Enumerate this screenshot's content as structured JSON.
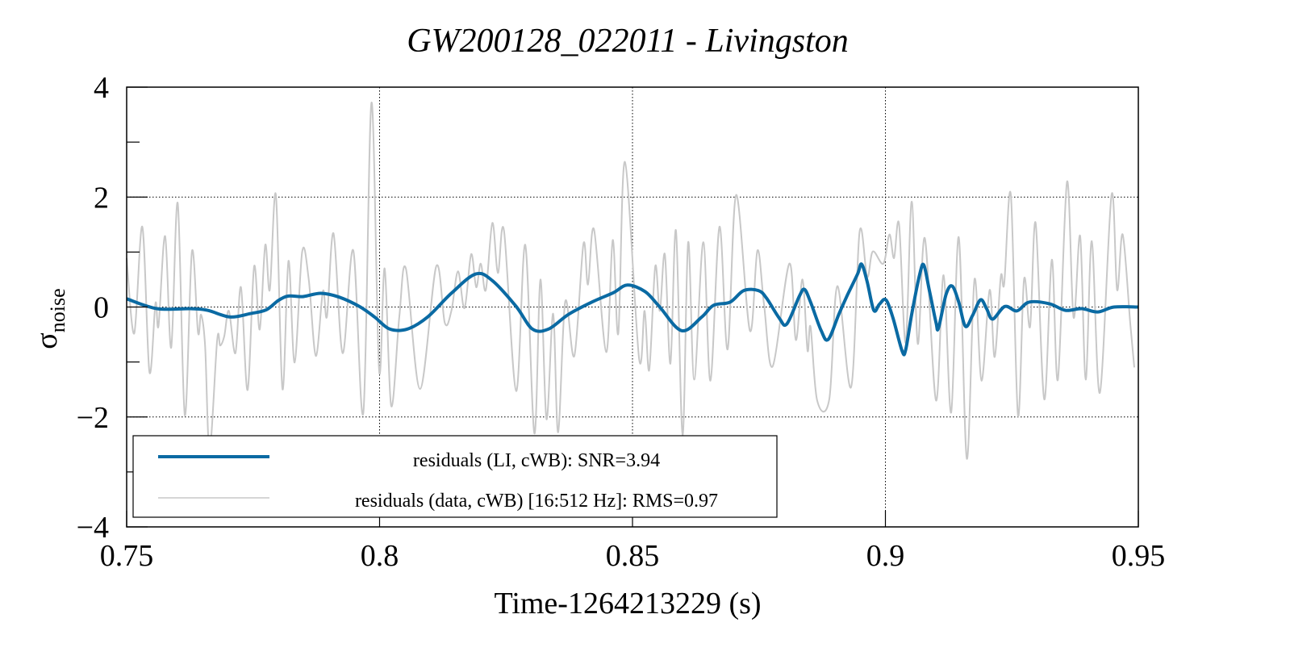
{
  "chart_data": {
    "type": "line",
    "title": "GW200128_022011 - Livingston",
    "xlabel": "Time-1264213229 (s)",
    "ylabel": "σ",
    "ylabel_sub": "noise",
    "xlim": [
      0.75,
      0.95
    ],
    "ylim": [
      -4,
      4
    ],
    "xticks": [
      0.75,
      0.8,
      0.85,
      0.9,
      0.95
    ],
    "xtick_labels": [
      "0.75",
      "0.8",
      "0.85",
      "0.9",
      "0.95"
    ],
    "yticks": [
      4,
      2,
      0,
      -2,
      -4
    ],
    "ytick_labels": [
      "4",
      "2",
      "0",
      "−2",
      "−4"
    ],
    "yminor": [
      3,
      1,
      -1,
      -3
    ],
    "grid": true,
    "legend_position": "bottom-left",
    "colors": {
      "model": "#0a6aa3",
      "data": "#c8c8c8"
    },
    "series": [
      {
        "name": "residuals (data, cWB) [16:512 Hz]: RMS=0.97",
        "legend": "residuals (data, cWB) [16:512 Hz]: RMS=0.97",
        "x": [
          0.75,
          0.7515,
          0.7531,
          0.7545,
          0.7557,
          0.7563,
          0.7576,
          0.7588,
          0.7601,
          0.7615,
          0.7629,
          0.7641,
          0.7647,
          0.7655,
          0.7664,
          0.7679,
          0.7685,
          0.7693,
          0.7702,
          0.7715,
          0.7726,
          0.7739,
          0.7752,
          0.7763,
          0.7774,
          0.7783,
          0.7795,
          0.7808,
          0.782,
          0.7832,
          0.7847,
          0.786,
          0.7874,
          0.7888,
          0.7896,
          0.7909,
          0.7927,
          0.7948,
          0.7968,
          0.7984,
          0.7999,
          0.801,
          0.8023,
          0.8039,
          0.8052,
          0.808,
          0.8112,
          0.8129,
          0.8142,
          0.8155,
          0.8168,
          0.8181,
          0.8191,
          0.82,
          0.821,
          0.8223,
          0.8234,
          0.8246,
          0.827,
          0.8288,
          0.8306,
          0.8318,
          0.833,
          0.8343,
          0.8353,
          0.8367,
          0.8385,
          0.8403,
          0.8412,
          0.8424,
          0.8448,
          0.8461,
          0.8472,
          0.8485,
          0.8513,
          0.8524,
          0.8533,
          0.8545,
          0.8554,
          0.8564,
          0.8575,
          0.8586,
          0.8599,
          0.861,
          0.8622,
          0.864,
          0.8654,
          0.8672,
          0.8688,
          0.8705,
          0.8732,
          0.8747,
          0.876,
          0.8777,
          0.881,
          0.8823,
          0.8836,
          0.8846,
          0.8852,
          0.8865,
          0.8889,
          0.8905,
          0.8932,
          0.8949,
          0.8964,
          0.8975,
          0.8996,
          0.9008,
          0.9017,
          0.9027,
          0.904,
          0.9052,
          0.9064,
          0.9078,
          0.91,
          0.9115,
          0.913,
          0.9145,
          0.9161,
          0.9176,
          0.919,
          0.9206,
          0.9216,
          0.9228,
          0.9235,
          0.9248,
          0.9262,
          0.9274,
          0.9286,
          0.9297,
          0.9314,
          0.9329,
          0.9341,
          0.9359,
          0.9372,
          0.9385,
          0.9396,
          0.9408,
          0.9424,
          0.9447,
          0.9458,
          0.9469,
          0.9484,
          0.9492
        ],
        "y": [
          0.89,
          -0.48,
          1.46,
          -1.18,
          0.07,
          -0.34,
          1.29,
          -0.74,
          1.89,
          -1.97,
          1.01,
          -0.46,
          -0.14,
          -0.7,
          -2.6,
          -0.6,
          -0.7,
          -0.53,
          -0.07,
          -0.84,
          0.36,
          -1.51,
          0.74,
          -0.41,
          1.13,
          0.31,
          2.04,
          -1.49,
          0.84,
          -1.01,
          1.01,
          0.5,
          -0.89,
          0.29,
          -0.17,
          1.34,
          -0.84,
          1.03,
          -1.92,
          3.72,
          -1.15,
          0.7,
          -1.8,
          -0.17,
          0.7,
          -1.49,
          0.74,
          -0.29,
          -0.07,
          0.65,
          -0.02,
          0.96,
          0.36,
          0.79,
          0.31,
          1.53,
          0.62,
          1.39,
          -1.53,
          1.13,
          -2.3,
          0.5,
          -2.04,
          -0.12,
          -2.28,
          0.1,
          -0.89,
          1.15,
          0.41,
          1.41,
          -0.82,
          1.22,
          -0.48,
          2.64,
          -0.94,
          -0.07,
          -1.15,
          0.74,
          -0.07,
          0.96,
          -1.03,
          1.39,
          -2.33,
          1.18,
          -1.32,
          1.18,
          -1.34,
          1.46,
          -0.77,
          2.04,
          -0.43,
          1.03,
          0.05,
          -1.08,
          0.79,
          -0.6,
          0.5,
          -0.79,
          -0.36,
          -1.7,
          -1.68,
          0.38,
          -1.46,
          1.37,
          0.55,
          1.01,
          0.79,
          1.32,
          0.89,
          1.51,
          -0.65,
          1.92,
          -0.67,
          1.25,
          -1.7,
          0.58,
          -1.92,
          1.27,
          -2.76,
          0.5,
          -1.34,
          0.31,
          -0.91,
          0.55,
          0.43,
          2.04,
          -1.97,
          0.5,
          -0.36,
          1.53,
          -1.68,
          0.86,
          -1.32,
          2.28,
          -0.19,
          1.29,
          -1.32,
          1.2,
          -1.56,
          2.04,
          0.31,
          1.32,
          -0.3,
          -1.1
        ]
      },
      {
        "name": "residuals (LI, cWB): SNR=3.94",
        "legend": "residuals (LI, cWB): SNR=3.94",
        "x": [
          0.75,
          0.756,
          0.7626,
          0.766,
          0.7704,
          0.7744,
          0.7776,
          0.78,
          0.782,
          0.7848,
          0.7884,
          0.792,
          0.796,
          0.799,
          0.802,
          0.8055,
          0.8095,
          0.8143,
          0.819,
          0.8223,
          0.827,
          0.8302,
          0.8334,
          0.8374,
          0.8422,
          0.8462,
          0.849,
          0.8525,
          0.8553,
          0.8597,
          0.8637,
          0.866,
          0.8693,
          0.872,
          0.8749,
          0.8765,
          0.879,
          0.8805,
          0.883,
          0.884,
          0.8852,
          0.8873,
          0.8887,
          0.8908,
          0.8924,
          0.8945,
          0.8953,
          0.8964,
          0.8977,
          0.8988,
          0.9001,
          0.9015,
          0.9033,
          0.904,
          0.9052,
          0.9068,
          0.9076,
          0.9087,
          0.91,
          0.9105,
          0.912,
          0.9132,
          0.9145,
          0.9158,
          0.9172,
          0.9188,
          0.92,
          0.9212,
          0.9236,
          0.926,
          0.9284,
          0.9324,
          0.9356,
          0.9388,
          0.942,
          0.9452,
          0.95
        ],
        "y": [
          0.15,
          -0.03,
          -0.03,
          -0.06,
          -0.18,
          -0.12,
          -0.05,
          0.12,
          0.2,
          0.19,
          0.25,
          0.18,
          0.01,
          -0.18,
          -0.4,
          -0.4,
          -0.18,
          0.26,
          0.6,
          0.48,
          0.01,
          -0.4,
          -0.4,
          -0.13,
          0.1,
          0.26,
          0.4,
          0.28,
          0.01,
          -0.43,
          -0.18,
          0.03,
          0.09,
          0.3,
          0.3,
          0.16,
          -0.2,
          -0.31,
          0.2,
          0.32,
          0.09,
          -0.43,
          -0.59,
          -0.13,
          0.2,
          0.6,
          0.78,
          0.46,
          -0.06,
          0.05,
          0.13,
          -0.2,
          -0.8,
          -0.78,
          -0.13,
          0.6,
          0.76,
          0.3,
          -0.28,
          -0.38,
          0.23,
          0.38,
          0.09,
          -0.35,
          -0.16,
          0.13,
          -0.03,
          -0.22,
          0.01,
          -0.07,
          0.09,
          0.06,
          -0.06,
          -0.03,
          -0.09,
          0,
          0
        ]
      }
    ]
  }
}
